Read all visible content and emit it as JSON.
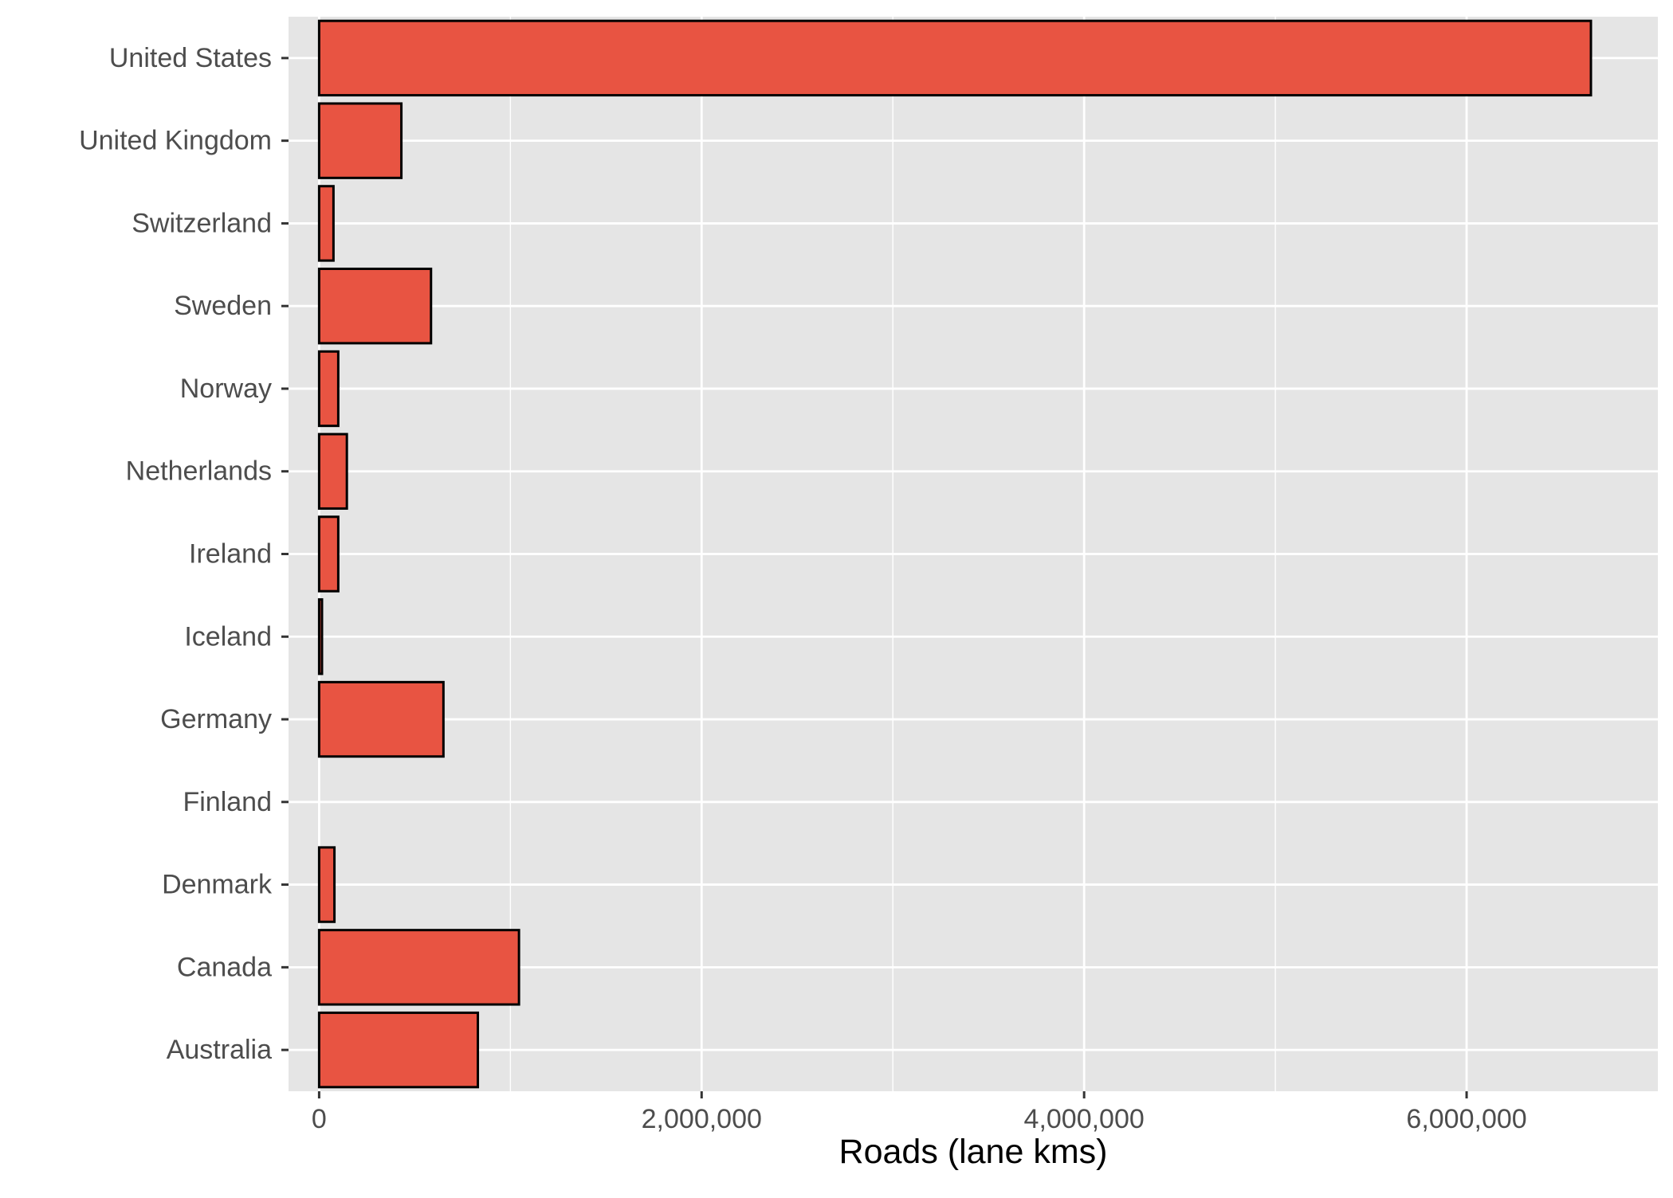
{
  "colors": {
    "panel_background": "#e5e5e5",
    "grid_major": "#ffffff",
    "bar_fill": "#e85442",
    "bar_outline": "#000000",
    "tick_text": "#4d4d4d",
    "axis_title_text": "#000000"
  },
  "chart_data": {
    "type": "bar",
    "orientation": "horizontal",
    "title": "",
    "xlabel": "Roads (lane kms)",
    "ylabel": "",
    "xlim": [
      -160000,
      7000000
    ],
    "x_major_ticks": [
      0,
      2000000,
      4000000,
      6000000
    ],
    "x_tick_labels": [
      "0",
      "2,000,000",
      "4,000,000",
      "6,000,000"
    ],
    "x_minor_gridlines": [
      1000000,
      3000000,
      5000000
    ],
    "grid": true,
    "legend": "none",
    "categories": [
      "United States",
      "United Kingdom",
      "Switzerland",
      "Sweden",
      "Norway",
      "Netherlands",
      "Ireland",
      "Iceland",
      "Germany",
      "Finland",
      "Denmark",
      "Canada",
      "Australia"
    ],
    "values": [
      6650000,
      430000,
      75000,
      585000,
      100000,
      145000,
      100000,
      15000,
      650000,
      null,
      80000,
      1045000,
      830000
    ]
  }
}
